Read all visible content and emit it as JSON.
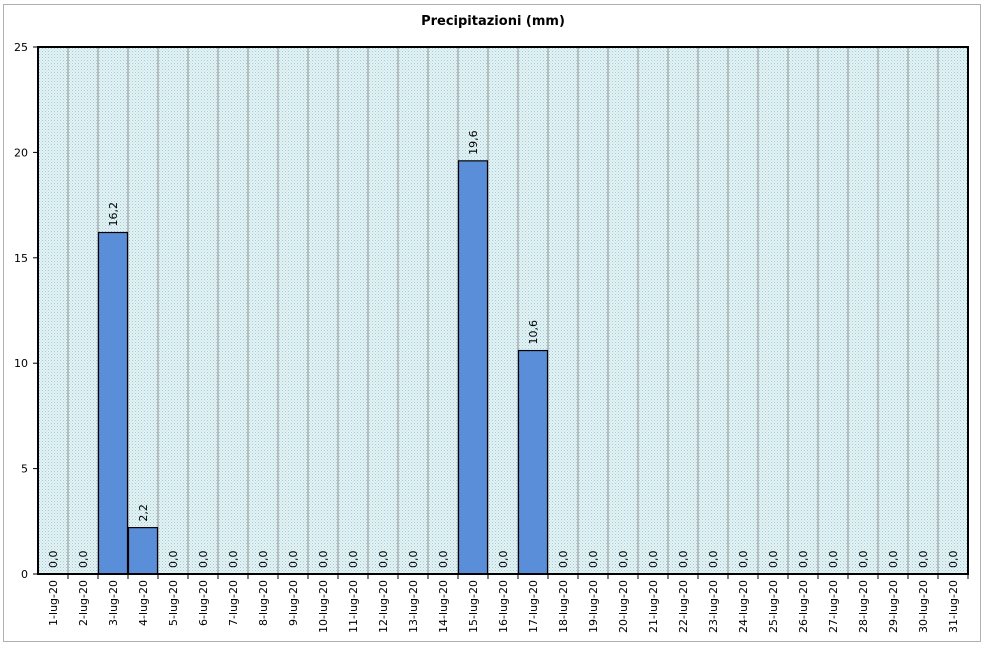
{
  "chart_data": {
    "type": "bar",
    "title": "Precipitazioni (mm)",
    "xlabel": "",
    "ylabel": "",
    "ylim": [
      0,
      25
    ],
    "yticks": [
      "0",
      "5",
      "10",
      "15",
      "20",
      "25"
    ],
    "grid": "vertical",
    "legend": "none",
    "categories": [
      "1-lug-20",
      "2-lug-20",
      "3-lug-20",
      "4-lug-20",
      "5-lug-20",
      "6-lug-20",
      "7-lug-20",
      "8-lug-20",
      "9-lug-20",
      "10-lug-20",
      "11-lug-20",
      "12-lug-20",
      "13-lug-20",
      "14-lug-20",
      "15-lug-20",
      "16-lug-20",
      "17-lug-20",
      "18-lug-20",
      "19-lug-20",
      "20-lug-20",
      "21-lug-20",
      "22-lug-20",
      "23-lug-20",
      "24-lug-20",
      "25-lug-20",
      "26-lug-20",
      "27-lug-20",
      "28-lug-20",
      "29-lug-20",
      "30-lug-20",
      "31-lug-20"
    ],
    "values": [
      0,
      0,
      16.2,
      2.2,
      0,
      0,
      0,
      0,
      0,
      0,
      0,
      0,
      0,
      0,
      19.6,
      0,
      10.6,
      0,
      0,
      0,
      0,
      0,
      0,
      0,
      0,
      0,
      0,
      0,
      0,
      0,
      0
    ],
    "data_labels": [
      "0,0",
      "0,0",
      "16,2",
      "2,2",
      "0,0",
      "0,0",
      "0,0",
      "0,0",
      "0,0",
      "0,0",
      "0,0",
      "0,0",
      "0,0",
      "0,0",
      "19,6",
      "0,0",
      "10,6",
      "0,0",
      "0,0",
      "0,0",
      "0,0",
      "0,0",
      "0,0",
      "0,0",
      "0,0",
      "0,0",
      "0,0",
      "0,0",
      "0,0",
      "0,0",
      "0,0"
    ],
    "colors": {
      "bar": "#5a8ed8",
      "bar_border": "#000000",
      "plot_bg": "#d8ecf0",
      "grid": "#9a9a9a"
    }
  }
}
